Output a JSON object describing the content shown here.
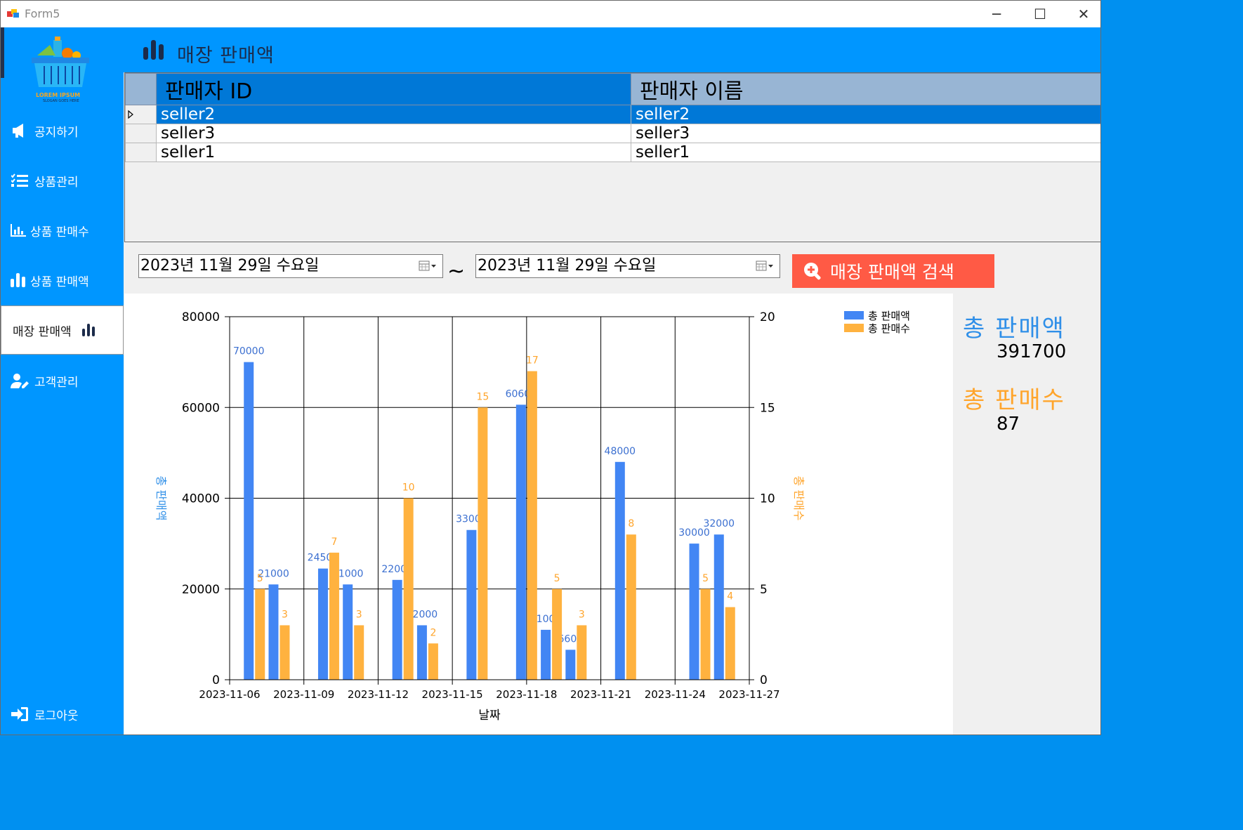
{
  "window": {
    "title": "Form5",
    "controls": {
      "minimize": "─",
      "maximize": "☐",
      "close": "✕"
    }
  },
  "sidebar": {
    "logo_text": "LOREM IPSUM",
    "logo_sub": "SLOGAN GOES HERE",
    "items": [
      {
        "label": "공지하기",
        "icon": "megaphone-icon"
      },
      {
        "label": "상품관리",
        "icon": "checklist-icon"
      },
      {
        "label": "상품 판매수",
        "icon": "line-chart-icon"
      },
      {
        "label": "상품 판매액",
        "icon": "bar-chart-icon"
      },
      {
        "label": "매장 판매액",
        "icon": "bar-chart-icon",
        "active": true
      },
      {
        "label": "고객관리",
        "icon": "user-edit-icon"
      }
    ],
    "logout_label": "로그아웃"
  },
  "header": {
    "title": "매장 판매액"
  },
  "grid": {
    "columns": [
      "판매자 ID",
      "판매자 이름"
    ],
    "rows": [
      {
        "id": "seller2",
        "name": "seller2",
        "selected": true
      },
      {
        "id": "seller3",
        "name": "seller3"
      },
      {
        "id": "seller1",
        "name": "seller1"
      }
    ]
  },
  "search": {
    "start_date": "2023년 11월 29일 수요일",
    "end_date": "2023년 11월 29일 수요일",
    "separator": "~",
    "button_label": "매장 판매액 검색"
  },
  "stats": {
    "total_sales_label": "총 판매액",
    "total_sales_value": "391700",
    "total_count_label": "총 판매수",
    "total_count_value": "87"
  },
  "colors": {
    "sidebar": "#0096ff",
    "sales": "#4286f4",
    "count": "#ffb23f",
    "button": "#ff5a45",
    "selected_row": "#0078d7"
  },
  "chart_data": {
    "type": "bar",
    "xlabel": "날짜",
    "ylabel": "총 판매액",
    "y2label": "총 판매수",
    "ylim": [
      0,
      80000
    ],
    "y2lim": [
      0,
      20
    ],
    "yticks": [
      0,
      20000,
      40000,
      60000,
      80000
    ],
    "y2ticks": [
      0,
      5,
      10,
      15,
      20
    ],
    "xlim": [
      "2023-11-06",
      "2023-11-27"
    ],
    "xticks": [
      "2023-11-06",
      "2023-11-09",
      "2023-11-12",
      "2023-11-15",
      "2023-11-18",
      "2023-11-21",
      "2023-11-24",
      "2023-11-27"
    ],
    "grid": true,
    "legend_position": "top-right",
    "series": [
      {
        "name": "총 판매액",
        "axis": "left",
        "color": "#4286f4",
        "points": [
          {
            "x": "2023-11-07",
            "y": 70000
          },
          {
            "x": "2023-11-08",
            "y": 21000
          },
          {
            "x": "2023-11-10",
            "y": 24500
          },
          {
            "x": "2023-11-11",
            "y": 21000
          },
          {
            "x": "2023-11-13",
            "y": 22000
          },
          {
            "x": "2023-11-14",
            "y": 12000
          },
          {
            "x": "2023-11-16",
            "y": 33000
          },
          {
            "x": "2023-11-18",
            "y": 60600
          },
          {
            "x": "2023-11-19",
            "y": 11000
          },
          {
            "x": "2023-11-20",
            "y": 6600
          },
          {
            "x": "2023-11-22",
            "y": 48000
          },
          {
            "x": "2023-11-25",
            "y": 30000
          },
          {
            "x": "2023-11-26",
            "y": 32000
          }
        ]
      },
      {
        "name": "총 판매수",
        "axis": "right",
        "color": "#ffb23f",
        "points": [
          {
            "x": "2023-11-07",
            "y": 5
          },
          {
            "x": "2023-11-08",
            "y": 3
          },
          {
            "x": "2023-11-10",
            "y": 7
          },
          {
            "x": "2023-11-11",
            "y": 3
          },
          {
            "x": "2023-11-13",
            "y": 10
          },
          {
            "x": "2023-11-14",
            "y": 2
          },
          {
            "x": "2023-11-16",
            "y": 15
          },
          {
            "x": "2023-11-18",
            "y": 17
          },
          {
            "x": "2023-11-19",
            "y": 5
          },
          {
            "x": "2023-11-20",
            "y": 3
          },
          {
            "x": "2023-11-22",
            "y": 8
          },
          {
            "x": "2023-11-25",
            "y": 5
          },
          {
            "x": "2023-11-26",
            "y": 4
          }
        ]
      }
    ]
  }
}
